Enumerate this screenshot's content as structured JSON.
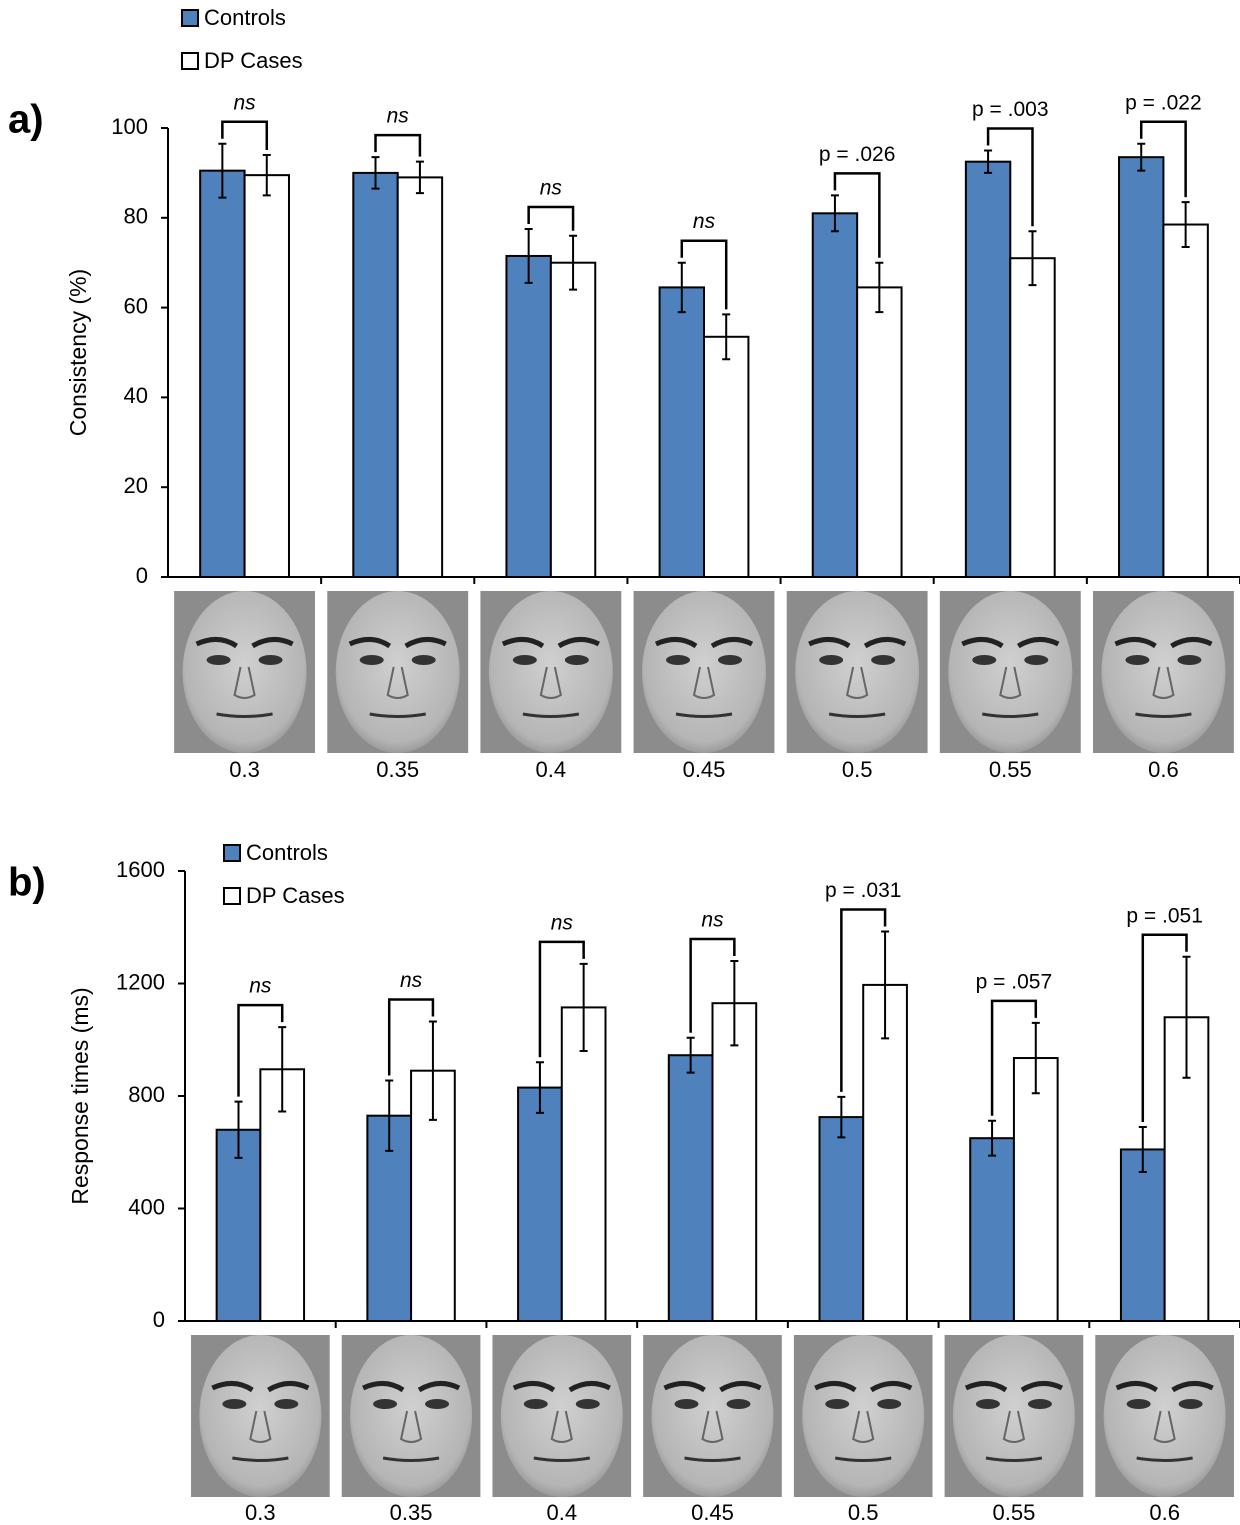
{
  "chart_data": [
    {
      "type": "bar",
      "panel_label": "a)",
      "y_label": "Consistency (%)",
      "categories": [
        "0.3",
        "0.35",
        "0.4",
        "0.45",
        "0.5",
        "0.55",
        "0.6"
      ],
      "series": [
        {
          "name": "Controls",
          "color": "#4f81bd",
          "values": [
            90.5,
            90,
            71.5,
            64.5,
            81,
            92.5,
            93.5
          ],
          "errors": [
            6,
            3.5,
            6,
            5.5,
            4,
            2.5,
            3
          ]
        },
        {
          "name": "DP Cases",
          "color": "#ffffff",
          "values": [
            89.5,
            89,
            70,
            53.5,
            64.5,
            71,
            78.5
          ],
          "errors": [
            4.5,
            3.5,
            6,
            5,
            5.5,
            6,
            5
          ]
        }
      ],
      "annotations": [
        "ns",
        "ns",
        "ns",
        "ns",
        "p = .026",
        "p = .003",
        "p = .022"
      ],
      "ylim": [
        0,
        100
      ],
      "yticks": [
        0,
        20,
        40,
        60,
        80,
        100
      ],
      "legend": "above"
    },
    {
      "type": "bar",
      "panel_label": "b)",
      "y_label": "Response times (ms)",
      "categories": [
        "0.3",
        "0.35",
        "0.4",
        "0.45",
        "0.5",
        "0.55",
        "0.6"
      ],
      "series": [
        {
          "name": "Controls",
          "color": "#4f81bd",
          "values": [
            680,
            730,
            830,
            945,
            725,
            650,
            610
          ],
          "errors": [
            100,
            125,
            90,
            62,
            72,
            62,
            80
          ]
        },
        {
          "name": "DP Cases",
          "color": "#ffffff",
          "values": [
            895,
            890,
            1115,
            1130,
            1195,
            935,
            1080
          ],
          "errors": [
            150,
            175,
            155,
            150,
            190,
            125,
            215
          ]
        }
      ],
      "annotations": [
        "ns",
        "ns",
        "ns",
        "ns",
        "p = .031",
        "p = .057",
        "p = .051"
      ],
      "ylim": [
        0,
        1600
      ],
      "yticks": [
        0,
        400,
        800,
        1200,
        1600
      ],
      "legend": "inside"
    }
  ]
}
